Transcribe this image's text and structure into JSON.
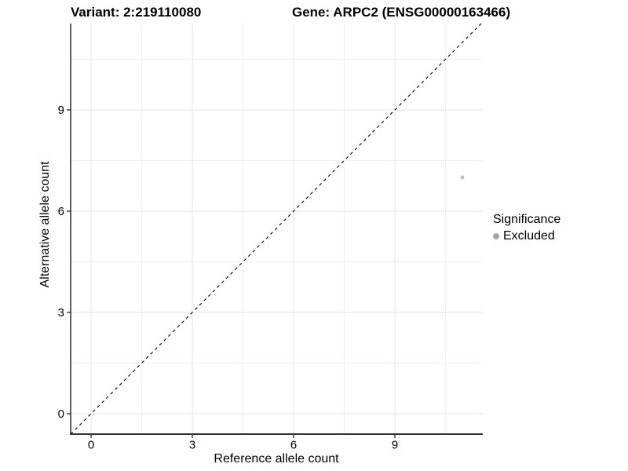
{
  "title": {
    "variant": "Variant: 2:219110080",
    "gene": "Gene: ARPC2 (ENSG00000163466)"
  },
  "chart_data": {
    "type": "scatter",
    "xlabel": "Reference allele count",
    "ylabel": "Alternative allele count",
    "x_ticks": [
      0,
      3,
      6,
      9
    ],
    "y_ticks": [
      0,
      3,
      6,
      9
    ],
    "x_minor_ticks": [
      1.5,
      4.5,
      7.5,
      10.5
    ],
    "y_minor_ticks": [
      1.5,
      4.5,
      7.5,
      10.5
    ],
    "xlim": [
      -0.605,
      11.605
    ],
    "ylim": [
      -0.605,
      11.558
    ],
    "grid": "major and minor, light gray on white panel",
    "points": [
      {
        "x": 11,
        "y": 7,
        "series": "Excluded"
      }
    ],
    "reference_line": {
      "type": "identity y=x",
      "style": "dashed",
      "x1": -0.605,
      "y1": -0.605,
      "x2": 11.558,
      "y2": 11.558
    },
    "legend": {
      "title": "Significance",
      "position": "right",
      "items": [
        {
          "label": "Excluded",
          "color": "#a6a6a6"
        }
      ]
    },
    "colors": {
      "point": "#bfbfbf",
      "axis_line": "#333333",
      "tick_label": "#000000",
      "grid_major": "#e3e3e3",
      "grid_minor": "#f1f1f1",
      "reference_line": "#000000",
      "background": "#ffffff"
    }
  }
}
